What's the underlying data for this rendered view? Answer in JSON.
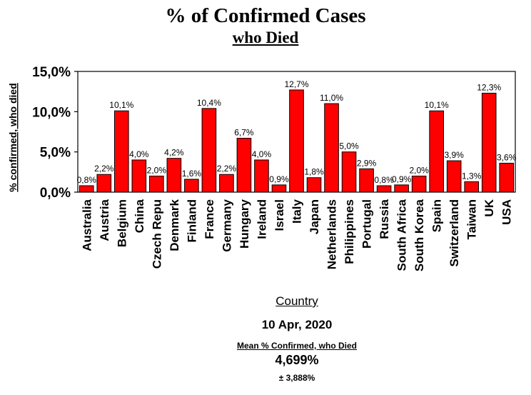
{
  "chart_data": {
    "type": "bar",
    "title": "% of Confirmed Cases",
    "subtitle": "who Died",
    "xlabel": "Country",
    "ylabel": "% confirmed, who died",
    "ylim": [
      0,
      15
    ],
    "yticks": [
      "0,0%",
      "5,0%",
      "10,0%",
      "15,0%"
    ],
    "ytick_values": [
      0,
      5,
      10,
      15
    ],
    "grid": false,
    "bar_color": "#ff0000",
    "categories": [
      "Australia",
      "Austria",
      "Belgium",
      "China",
      "Czech Repu",
      "Denmark",
      "Finland",
      "France",
      "Germany",
      "Hungary",
      "Ireland",
      "Israel",
      "Italy",
      "Japan",
      "Netherlands",
      "Philippines",
      "Portugal",
      "Russia",
      "South Africa",
      "South Korea",
      "Spain",
      "Switzerland",
      "Taiwan",
      "UK",
      "USA"
    ],
    "values": [
      0.8,
      2.2,
      10.1,
      4.0,
      2.0,
      4.2,
      1.6,
      10.4,
      2.2,
      6.7,
      4.0,
      0.9,
      12.7,
      1.8,
      11.0,
      5.0,
      2.9,
      0.8,
      0.9,
      2.0,
      10.1,
      3.9,
      1.3,
      12.3,
      3.6
    ],
    "labels": [
      "0,8%",
      "2,2%",
      "10,1%",
      "4,0%",
      "2,0%",
      "4,2%",
      "1,6%",
      "10,4%",
      "2,2%",
      "6,7%",
      "4,0%",
      "0,9%",
      "12,7%",
      "1,8%",
      "11,0%",
      "5,0%",
      "2,9%",
      "0,8%",
      "0,9%",
      "2,0%",
      "10,1%",
      "3,9%",
      "1,3%",
      "12,3%",
      "3,6%"
    ]
  },
  "footer": {
    "date": "10 Apr, 2020",
    "mean_label": "Mean % Confirmed, who Died",
    "mean_value": "4,699%",
    "std_dev": "± 3,888%"
  }
}
